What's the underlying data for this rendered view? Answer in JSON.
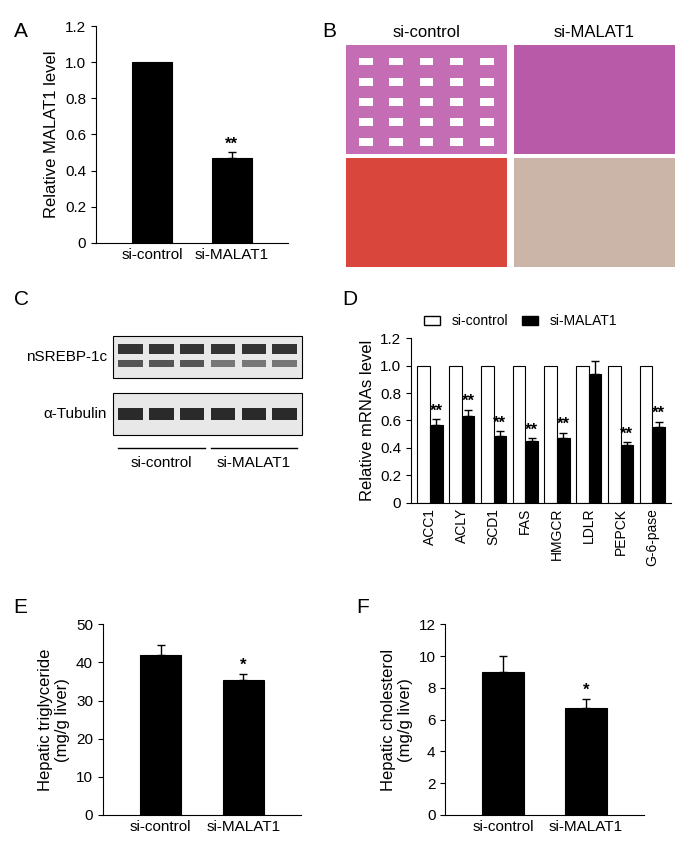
{
  "chart_data": [
    {
      "panel": "A",
      "type": "bar",
      "categories": [
        "si-control",
        "si-MALAT1"
      ],
      "values": [
        1.0,
        0.47
      ],
      "errors": [
        null,
        0.03
      ],
      "significance": [
        null,
        "**"
      ],
      "color": "#000000",
      "y_label": "Relative MALAT1 level",
      "ylim": [
        0,
        1.2
      ],
      "yticks": [
        0,
        0.2,
        0.4,
        0.6,
        0.8,
        {
          "value": 1,
          "label": "1.0"
        },
        1.2
      ]
    },
    {
      "panel": "D",
      "type": "bar",
      "categories": [
        "ACC1",
        "ACLY",
        "SCD1",
        "FAS",
        "HMGCR",
        "LDLR",
        "PEPCK",
        "G-6-pase"
      ],
      "series": [
        {
          "name": "si-control",
          "color": "#ffffff",
          "values": [
            1.0,
            1.0,
            1.0,
            1.0,
            1.0,
            1.0,
            1.0,
            1.0
          ]
        },
        {
          "name": "si-MALAT1",
          "color": "#000000",
          "values": [
            0.57,
            0.63,
            0.49,
            0.45,
            0.47,
            0.94,
            0.42,
            0.55
          ],
          "errors": [
            0.04,
            0.05,
            0.03,
            0.02,
            0.04,
            0.09,
            0.02,
            0.04
          ],
          "significance": [
            "**",
            "**",
            "**",
            "**",
            "**",
            null,
            "**",
            "**"
          ]
        }
      ],
      "y_label": "Relative mRNAs level",
      "legend": "upper left",
      "ylim": [
        0,
        1.2
      ],
      "yticks": [
        0,
        0.2,
        0.4,
        0.6,
        0.8,
        {
          "value": 1,
          "label": "1.0"
        },
        1.2
      ]
    },
    {
      "panel": "E",
      "type": "bar",
      "categories": [
        "si-control",
        "si-MALAT1"
      ],
      "values": [
        42,
        35.5
      ],
      "errors": [
        2.5,
        1.5
      ],
      "significance": [
        null,
        "*"
      ],
      "color": "#000000",
      "y_label": "Hepatic triglyceride\n(mg/g liver)",
      "ylim": [
        0,
        50
      ],
      "yticks": [
        0,
        10,
        20,
        30,
        40,
        50
      ]
    },
    {
      "panel": "F",
      "type": "bar",
      "categories": [
        "si-control",
        "si-MALAT1"
      ],
      "values": [
        9.0,
        6.7
      ],
      "errors": [
        1.0,
        0.6
      ],
      "significance": [
        null,
        "*"
      ],
      "color": "#000000",
      "y_label": "Hepatic cholesterol\n(mg/g liver)",
      "ylim": [
        0,
        12
      ],
      "yticks": [
        0,
        2,
        4,
        6,
        8,
        10,
        12
      ]
    }
  ],
  "image_panels": [
    {
      "panel": "B",
      "columns": [
        "si-control",
        "si-MALAT1"
      ]
    },
    {
      "panel": "C",
      "rows": [
        "nSREBP-1c",
        "α-Tubulin"
      ],
      "groups": [
        "si-control",
        "si-MALAT1"
      ]
    }
  ]
}
